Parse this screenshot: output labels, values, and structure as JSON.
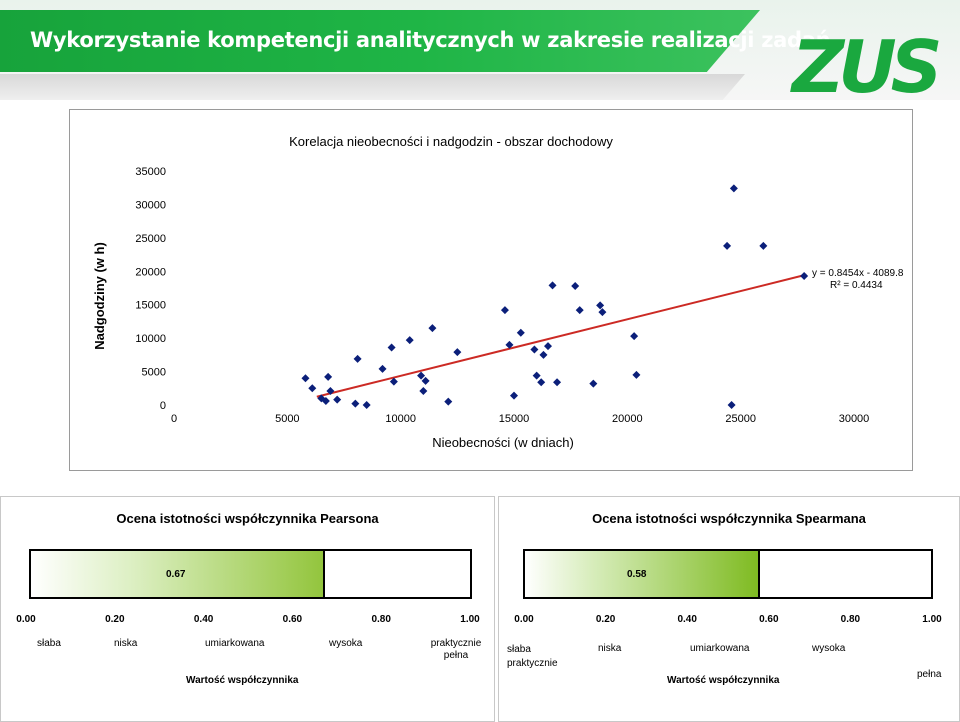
{
  "header": {
    "title": "Wykorzystanie kompetencji analitycznych  w zakresie realizacji zadań",
    "logo_text": "ZUS",
    "brand_color": "#1aa83f"
  },
  "chart_data": {
    "type": "scatter",
    "title": "Korelacja nieobecności i nadgodzin - obszar dochodowy",
    "xlabel": "Nieobecności (w dniach)",
    "ylabel": "Nadgodziny (w h)",
    "xlim": [
      0,
      30000
    ],
    "ylim": [
      0,
      35000
    ],
    "x_ticks": [
      "0",
      "5000",
      "10000",
      "15000",
      "20000",
      "25000",
      "30000"
    ],
    "y_ticks": [
      "0",
      "5000",
      "10000",
      "15000",
      "20000",
      "25000",
      "30000",
      "35000"
    ],
    "grid": false,
    "marker_color": "#0b1f7a",
    "trendline": {
      "equation": "y = 0.8454x - 4089.8",
      "r2": "R² = 0.4434",
      "slope": 0.8454,
      "intercept": -4089.8,
      "x_range": [
        6300,
        27900
      ],
      "color": "#cc2a24"
    },
    "points": [
      [
        5800,
        4000
      ],
      [
        6100,
        2500
      ],
      [
        6500,
        1000
      ],
      [
        6700,
        600
      ],
      [
        6900,
        2100
      ],
      [
        6800,
        4200
      ],
      [
        7200,
        800
      ],
      [
        8000,
        200
      ],
      [
        8100,
        6900
      ],
      [
        8500,
        0
      ],
      [
        9200,
        5400
      ],
      [
        9700,
        3500
      ],
      [
        9600,
        8600
      ],
      [
        10400,
        9700
      ],
      [
        10900,
        4400
      ],
      [
        11000,
        2100
      ],
      [
        11100,
        3600
      ],
      [
        11400,
        11500
      ],
      [
        12100,
        500
      ],
      [
        12500,
        7900
      ],
      [
        14600,
        14200
      ],
      [
        14800,
        9000
      ],
      [
        15000,
        1400
      ],
      [
        15300,
        10800
      ],
      [
        15900,
        8300
      ],
      [
        16000,
        4400
      ],
      [
        16200,
        3400
      ],
      [
        16300,
        7500
      ],
      [
        16500,
        8800
      ],
      [
        16700,
        17900
      ],
      [
        16900,
        3400
      ],
      [
        17700,
        17800
      ],
      [
        17900,
        14200
      ],
      [
        18500,
        3200
      ],
      [
        18800,
        14900
      ],
      [
        18900,
        13900
      ],
      [
        20300,
        10300
      ],
      [
        20400,
        4500
      ],
      [
        24400,
        23800
      ],
      [
        24600,
        0
      ],
      [
        24700,
        32400
      ],
      [
        26000,
        23800
      ],
      [
        27800,
        19300
      ]
    ]
  },
  "pearson": {
    "title": "Ocena istotności współczynnika Pearsona",
    "value": 0.67,
    "value_label": "0.67",
    "scale_ticks": [
      "0.00",
      "0.20",
      "0.40",
      "0.60",
      "0.80",
      "1.00"
    ],
    "categories": [
      "słaba",
      "niska",
      "umiarkowana",
      "wysoka",
      "praktycznie pełna"
    ],
    "footer": "Wartość współczynnika"
  },
  "spearman": {
    "title": "Ocena istotności współczynnika Spearmana",
    "value": 0.58,
    "value_label": "0.58",
    "scale_ticks": [
      "0.00",
      "0.20",
      "0.40",
      "0.60",
      "0.80",
      "1.00"
    ],
    "categories": [
      "słaba praktycznie",
      "niska",
      "umiarkowana",
      "wysoka",
      "pełna"
    ],
    "footer": "Wartość współczynnika"
  }
}
